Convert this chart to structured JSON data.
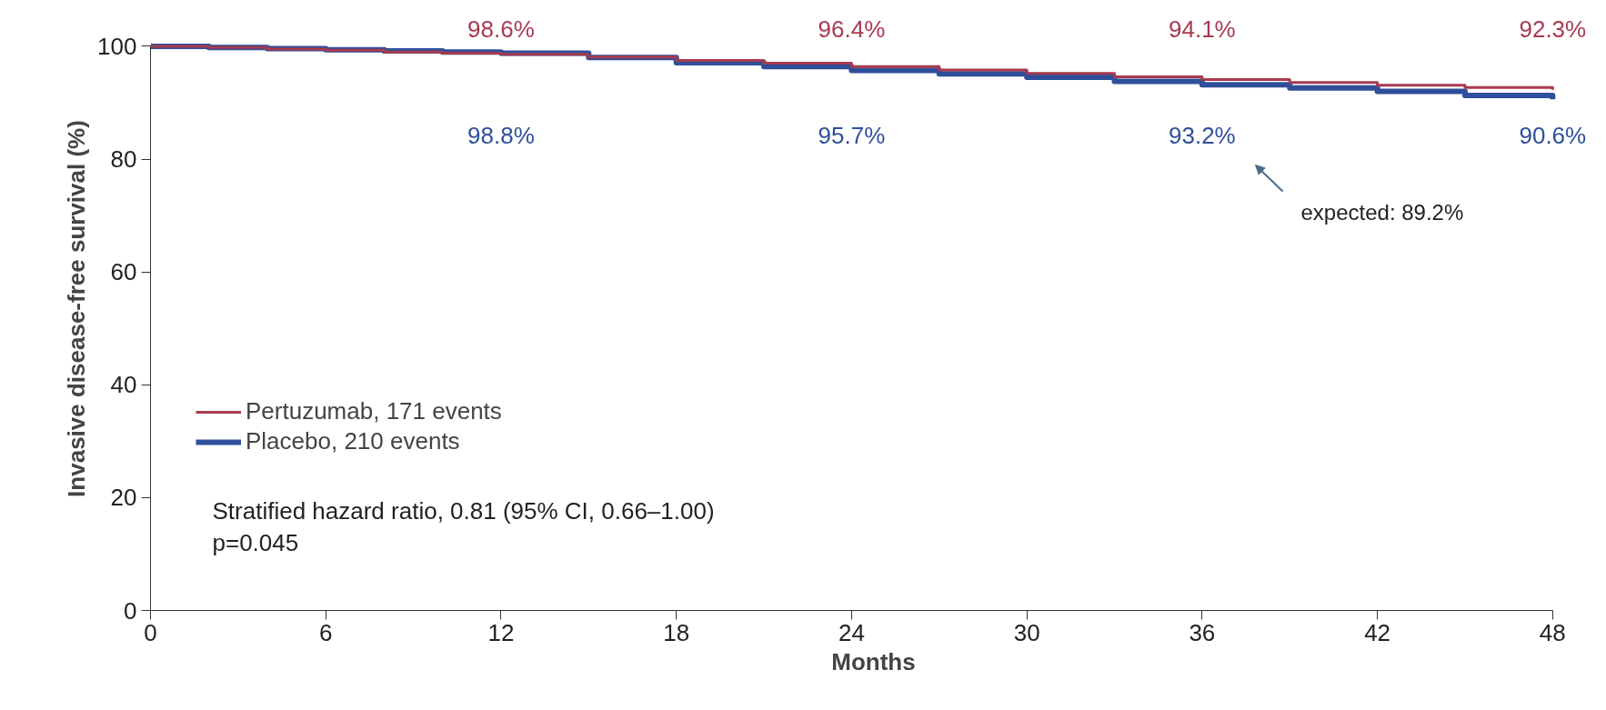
{
  "chart_data": {
    "type": "step",
    "xlabel": "Months",
    "ylabel": "Invasive disease-free survival (%)",
    "xlim": [
      0,
      48
    ],
    "ylim": [
      0,
      100
    ],
    "xticks": [
      0,
      6,
      12,
      18,
      24,
      30,
      36,
      42,
      48
    ],
    "yticks": [
      0,
      20,
      40,
      60,
      80,
      100
    ],
    "grid": false,
    "legend": "bottom left",
    "line_style": "solid",
    "marker": "none",
    "series": [
      {
        "name": "Pertuzumab, 171 events",
        "color": "#a83a4f",
        "x": [
          0,
          2,
          4,
          6,
          8,
          10,
          12,
          15,
          18,
          21,
          24,
          27,
          30,
          33,
          36,
          39,
          42,
          45,
          48
        ],
        "values": [
          100,
          99.8,
          99.5,
          99.3,
          99.0,
          98.8,
          98.6,
          98.1,
          97.5,
          97.0,
          96.4,
          95.8,
          95.2,
          94.6,
          94.1,
          93.6,
          93.1,
          92.7,
          92.3
        ],
        "value_labels": [
          null,
          null,
          null,
          null,
          null,
          null,
          "98.6%",
          null,
          null,
          null,
          "96.4%",
          null,
          null,
          null,
          "94.1%",
          null,
          null,
          null,
          "92.3%"
        ]
      },
      {
        "name": "Placebo, 210 events",
        "color": "#2f4f9a",
        "x": [
          0,
          2,
          4,
          6,
          8,
          10,
          12,
          15,
          18,
          21,
          24,
          27,
          30,
          33,
          36,
          39,
          42,
          45,
          48
        ],
        "values": [
          100,
          99.8,
          99.6,
          99.4,
          99.2,
          99.0,
          98.8,
          98.0,
          97.1,
          96.4,
          95.7,
          95.1,
          94.5,
          93.8,
          93.2,
          92.6,
          92.0,
          91.3,
          90.6
        ],
        "value_labels": [
          null,
          null,
          null,
          null,
          null,
          null,
          "98.8%",
          null,
          null,
          null,
          "95.7%",
          null,
          null,
          null,
          "93.2%",
          null,
          null,
          null,
          "90.6%"
        ]
      }
    ],
    "annotations": [
      "expected: 89.2%",
      "Stratified hazard ratio, 0.81 (95% CI, 0.66–1.00)",
      "p=0.045"
    ]
  }
}
